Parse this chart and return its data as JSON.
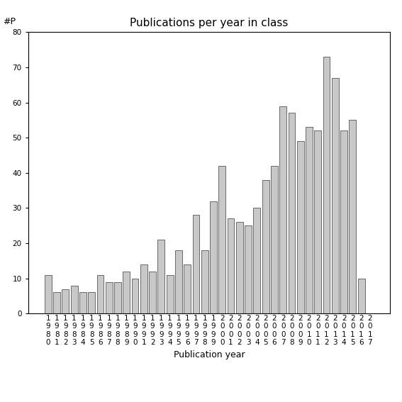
{
  "title": "Publications per year in class",
  "xlabel": "Publication year",
  "ylabel": "#P",
  "ylim": [
    0,
    80
  ],
  "yticks": [
    0,
    10,
    20,
    30,
    40,
    50,
    60,
    70,
    80
  ],
  "bar_color": "#c8c8c8",
  "bar_edgecolor": "#555555",
  "background_color": "#ffffff",
  "years": [
    "1980",
    "1981",
    "1982",
    "1983",
    "1984",
    "1985",
    "1986",
    "1987",
    "1988",
    "1989",
    "1990",
    "1991",
    "1992",
    "1993",
    "1994",
    "1995",
    "1996",
    "1997",
    "1998",
    "1999",
    "2000",
    "2001",
    "2002",
    "2003",
    "2004",
    "2005",
    "2006",
    "2007",
    "2008",
    "2009",
    "2010",
    "2011",
    "2012",
    "2013",
    "2014",
    "2015",
    "2016",
    "2017"
  ],
  "values": [
    11,
    6,
    7,
    8,
    6,
    6,
    11,
    9,
    9,
    12,
    10,
    14,
    12,
    21,
    11,
    18,
    14,
    28,
    18,
    32,
    42,
    27,
    26,
    25,
    30,
    38,
    42,
    59,
    57,
    49,
    53,
    52,
    73,
    67,
    52,
    55,
    10,
    0
  ],
  "title_fontsize": 11,
  "axis_fontsize": 9,
  "tick_fontsize": 7.5
}
